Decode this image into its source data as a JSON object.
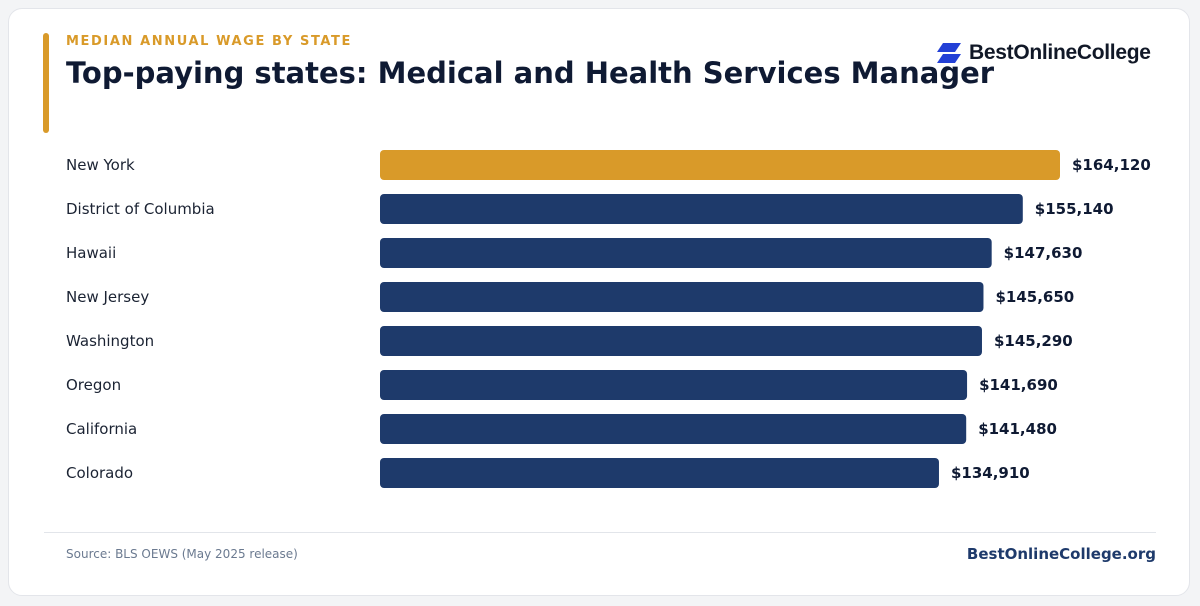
{
  "header": {
    "eyebrow": "MEDIAN ANNUAL WAGE BY STATE",
    "title": "Top-paying states: Medical and Health Services Manager"
  },
  "brand": {
    "logo_text": "BestOnlineCollege",
    "logo_icon": "stacked-parallelogram-icon",
    "logo_color": "#2340d6"
  },
  "colors": {
    "highlight": "#d99a29",
    "bar": "#1e3a6b"
  },
  "chart_data": {
    "type": "bar",
    "orientation": "horizontal",
    "categories": [
      "New York",
      "District of Columbia",
      "Hawaii",
      "New Jersey",
      "Washington",
      "Oregon",
      "California",
      "Colorado"
    ],
    "values": [
      164120,
      155140,
      147630,
      145650,
      145290,
      141690,
      141480,
      134910
    ],
    "value_labels": [
      "$164,120",
      "$155,140",
      "$147,630",
      "$145,650",
      "$145,290",
      "$141,690",
      "$141,480",
      "$134,910"
    ],
    "highlighted_category": "New York",
    "xlim": [
      0,
      164120
    ],
    "grid": false
  },
  "footer": {
    "source": "Source: BLS OEWS (May 2025 release)",
    "site": "BestOnlineCollege.org"
  }
}
